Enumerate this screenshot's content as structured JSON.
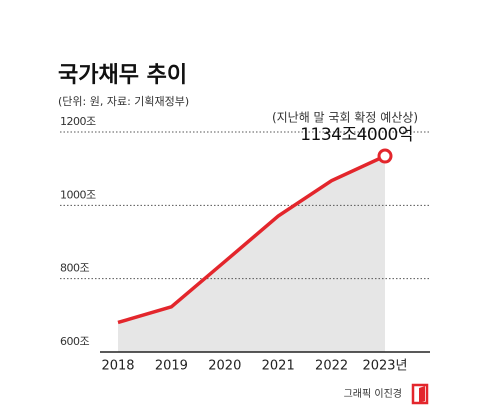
{
  "chart_data": {
    "type": "area-line",
    "title": "국가채무 추이",
    "subtitle": "(단위: 원, 자료: 기획재정부)",
    "annotation": "(지난해 말 국회 확정 예산상)",
    "credit": "그래픽 이진경",
    "categories": [
      "2018",
      "2019",
      "2020",
      "2021",
      "2022",
      "2023년"
    ],
    "values": [
      680.5,
      723.2,
      846.6,
      970.7,
      1067.4,
      1134.4
    ],
    "value_labels": [
      null,
      null,
      null,
      null,
      null,
      "1134조4000억"
    ],
    "color": "#e3262c",
    "area_color": "#e6e6e6",
    "ylim": [
      600,
      1200
    ],
    "yticks": [
      {
        "value": 600,
        "label": "600조"
      },
      {
        "value": 800,
        "label": "800조"
      },
      {
        "value": 1000,
        "label": "1000조"
      },
      {
        "value": 1200,
        "label": "1200조"
      }
    ],
    "grid": true
  }
}
